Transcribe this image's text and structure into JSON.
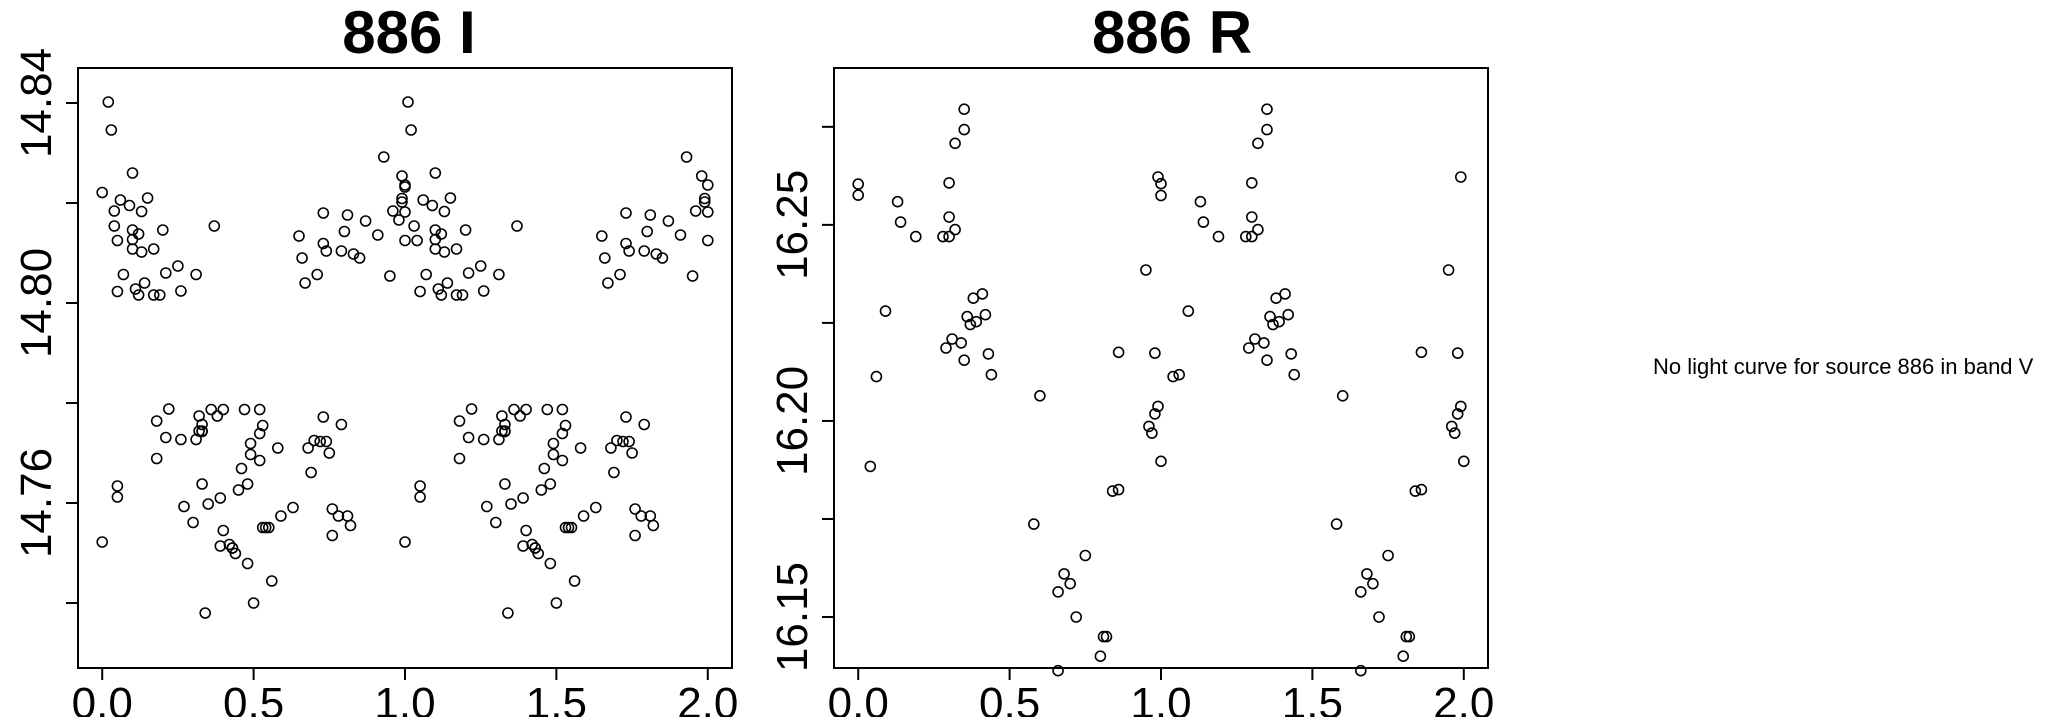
{
  "chart_data": [
    {
      "type": "scatter",
      "title": "886 I",
      "xlabel": "",
      "ylabel": "",
      "xlim": [
        -0.08,
        2.08
      ],
      "ylim": [
        14.847,
        14.727
      ],
      "y_reversed": true,
      "x_ticks": [
        "0.0",
        "0.5",
        "1.0",
        "1.5",
        "2.0"
      ],
      "x_tick_values": [
        0.0,
        0.5,
        1.0,
        1.5,
        2.0
      ],
      "y_ticks": [
        "14.76",
        "14.80",
        "14.84"
      ],
      "y_tick_values": [
        14.74,
        14.76,
        14.78,
        14.8,
        14.82,
        14.84
      ],
      "grid": false,
      "points": [
        [
          0.0,
          14.8221
        ],
        [
          0.0,
          14.7522
        ],
        [
          0.02,
          14.8402
        ],
        [
          0.03,
          14.8346
        ],
        [
          0.04,
          14.8184
        ],
        [
          0.04,
          14.8154
        ],
        [
          0.05,
          14.8125
        ],
        [
          0.05,
          14.8023
        ],
        [
          0.05,
          14.7612
        ],
        [
          0.05,
          14.7634
        ],
        [
          0.06,
          14.8206
        ],
        [
          0.07,
          14.8057
        ],
        [
          0.09,
          14.8195
        ],
        [
          0.1,
          14.8146
        ],
        [
          0.1,
          14.8108
        ],
        [
          0.1,
          14.8127
        ],
        [
          0.1,
          14.826
        ],
        [
          0.11,
          14.8028
        ],
        [
          0.12,
          14.8138
        ],
        [
          0.12,
          14.8016
        ],
        [
          0.13,
          14.8102
        ],
        [
          0.13,
          14.8183
        ],
        [
          0.14,
          14.804
        ],
        [
          0.15,
          14.821
        ],
        [
          0.17,
          14.8108
        ],
        [
          0.17,
          14.8016
        ],
        [
          0.18,
          14.7764
        ],
        [
          0.18,
          14.7689
        ],
        [
          0.19,
          14.8016
        ],
        [
          0.2,
          14.8146
        ],
        [
          0.21,
          14.806
        ],
        [
          0.21,
          14.7731
        ],
        [
          0.22,
          14.7788
        ],
        [
          0.25,
          14.8074
        ],
        [
          0.26,
          14.8024
        ],
        [
          0.26,
          14.7727
        ],
        [
          0.27,
          14.7593
        ],
        [
          0.3,
          14.7561
        ],
        [
          0.31,
          14.8057
        ],
        [
          0.31,
          14.7727
        ],
        [
          0.32,
          14.7774
        ],
        [
          0.32,
          14.7744
        ],
        [
          0.33,
          14.7638
        ],
        [
          0.33,
          14.7757
        ],
        [
          0.33,
          14.7743
        ],
        [
          0.33,
          14.7744
        ],
        [
          0.34,
          14.738
        ],
        [
          0.35,
          14.7598
        ],
        [
          0.36,
          14.7787
        ],
        [
          0.37,
          14.8154
        ],
        [
          0.38,
          14.7774
        ],
        [
          0.39,
          14.761
        ],
        [
          0.39,
          14.7514
        ],
        [
          0.4,
          14.7787
        ],
        [
          0.4,
          14.7545
        ],
        [
          0.42,
          14.7517
        ],
        [
          0.43,
          14.751
        ],
        [
          0.43,
          14.751
        ],
        [
          0.44,
          14.7499
        ],
        [
          0.45,
          14.7626
        ],
        [
          0.46,
          14.7669
        ],
        [
          0.47,
          14.7787
        ],
        [
          0.48,
          14.7638
        ],
        [
          0.48,
          14.7479
        ],
        [
          0.49,
          14.7697
        ],
        [
          0.49,
          14.7719
        ],
        [
          0.5,
          14.74
        ],
        [
          0.52,
          14.7739
        ],
        [
          0.52,
          14.7787
        ],
        [
          0.52,
          14.7685
        ],
        [
          0.53,
          14.7755
        ],
        [
          0.53,
          14.7551
        ],
        [
          0.54,
          14.7551
        ],
        [
          0.55,
          14.7551
        ],
        [
          0.56,
          14.7444
        ],
        [
          0.58,
          14.771
        ],
        [
          0.59,
          14.7574
        ],
        [
          0.63,
          14.7591
        ],
        [
          0.65,
          14.8134
        ],
        [
          0.66,
          14.809
        ],
        [
          0.67,
          14.804
        ],
        [
          0.68,
          14.771
        ],
        [
          0.69,
          14.7661
        ],
        [
          0.7,
          14.7725
        ],
        [
          0.71,
          14.8057
        ],
        [
          0.72,
          14.7723
        ],
        [
          0.73,
          14.818
        ],
        [
          0.73,
          14.7772
        ],
        [
          0.73,
          14.8119
        ],
        [
          0.74,
          14.8104
        ],
        [
          0.74,
          14.7723
        ],
        [
          0.75,
          14.77
        ],
        [
          0.76,
          14.7588
        ],
        [
          0.76,
          14.7535
        ],
        [
          0.78,
          14.7574
        ],
        [
          0.79,
          14.7757
        ],
        [
          0.79,
          14.8104
        ],
        [
          0.8,
          14.8143
        ],
        [
          0.81,
          14.8176
        ],
        [
          0.81,
          14.7574
        ],
        [
          0.82,
          14.7555
        ],
        [
          0.83,
          14.8098
        ],
        [
          0.85,
          14.809
        ],
        [
          0.87,
          14.8164
        ],
        [
          0.91,
          14.8136
        ],
        [
          0.93,
          14.8292
        ],
        [
          0.95,
          14.8054
        ],
        [
          0.96,
          14.8184
        ],
        [
          0.98,
          14.8166
        ],
        [
          0.99,
          14.8254
        ],
        [
          0.99,
          14.8209
        ],
        [
          0.99,
          14.8202
        ],
        [
          1.0,
          14.8236
        ],
        [
          1.0,
          14.8232
        ],
        [
          1.0,
          14.8182
        ],
        [
          1.0,
          14.8125
        ],
        [
          1.0,
          14.7522
        ],
        [
          1.01,
          14.8402
        ],
        [
          1.02,
          14.8346
        ],
        [
          1.03,
          14.8154
        ],
        [
          1.04,
          14.8125
        ],
        [
          1.05,
          14.8023
        ],
        [
          1.05,
          14.7612
        ],
        [
          1.05,
          14.7634
        ],
        [
          1.06,
          14.8206
        ],
        [
          1.07,
          14.8057
        ],
        [
          1.09,
          14.8195
        ],
        [
          1.1,
          14.8146
        ],
        [
          1.1,
          14.8108
        ],
        [
          1.1,
          14.8127
        ],
        [
          1.1,
          14.826
        ],
        [
          1.11,
          14.8028
        ],
        [
          1.12,
          14.8138
        ],
        [
          1.12,
          14.8016
        ],
        [
          1.13,
          14.8102
        ],
        [
          1.13,
          14.8183
        ],
        [
          1.14,
          14.804
        ],
        [
          1.15,
          14.821
        ],
        [
          1.17,
          14.8108
        ],
        [
          1.17,
          14.8016
        ],
        [
          1.18,
          14.7764
        ],
        [
          1.18,
          14.7689
        ],
        [
          1.19,
          14.8016
        ],
        [
          1.2,
          14.8146
        ],
        [
          1.21,
          14.806
        ],
        [
          1.21,
          14.7731
        ],
        [
          1.22,
          14.7788
        ],
        [
          1.25,
          14.8074
        ],
        [
          1.26,
          14.8024
        ],
        [
          1.26,
          14.7727
        ],
        [
          1.27,
          14.7593
        ],
        [
          1.3,
          14.7561
        ],
        [
          1.31,
          14.8057
        ],
        [
          1.31,
          14.7727
        ],
        [
          1.32,
          14.7774
        ],
        [
          1.32,
          14.7744
        ],
        [
          1.33,
          14.7638
        ],
        [
          1.33,
          14.7757
        ],
        [
          1.33,
          14.7743
        ],
        [
          1.33,
          14.7744
        ],
        [
          1.34,
          14.738
        ],
        [
          1.35,
          14.7598
        ],
        [
          1.36,
          14.7787
        ],
        [
          1.37,
          14.8154
        ],
        [
          1.38,
          14.7774
        ],
        [
          1.39,
          14.761
        ],
        [
          1.39,
          14.7514
        ],
        [
          1.4,
          14.7787
        ],
        [
          1.4,
          14.7545
        ],
        [
          1.42,
          14.7517
        ],
        [
          1.43,
          14.751
        ],
        [
          1.43,
          14.751
        ],
        [
          1.44,
          14.7499
        ],
        [
          1.45,
          14.7626
        ],
        [
          1.46,
          14.7669
        ],
        [
          1.47,
          14.7787
        ],
        [
          1.48,
          14.7638
        ],
        [
          1.48,
          14.7479
        ],
        [
          1.49,
          14.7697
        ],
        [
          1.49,
          14.7719
        ],
        [
          1.5,
          14.74
        ],
        [
          1.52,
          14.7739
        ],
        [
          1.52,
          14.7787
        ],
        [
          1.52,
          14.7685
        ],
        [
          1.53,
          14.7755
        ],
        [
          1.53,
          14.7551
        ],
        [
          1.54,
          14.7551
        ],
        [
          1.55,
          14.7551
        ],
        [
          1.56,
          14.7444
        ],
        [
          1.58,
          14.771
        ],
        [
          1.59,
          14.7574
        ],
        [
          1.63,
          14.7591
        ],
        [
          1.65,
          14.8134
        ],
        [
          1.66,
          14.809
        ],
        [
          1.67,
          14.804
        ],
        [
          1.68,
          14.771
        ],
        [
          1.69,
          14.7661
        ],
        [
          1.7,
          14.7725
        ],
        [
          1.71,
          14.8057
        ],
        [
          1.72,
          14.7723
        ],
        [
          1.73,
          14.818
        ],
        [
          1.73,
          14.7772
        ],
        [
          1.73,
          14.8119
        ],
        [
          1.74,
          14.8104
        ],
        [
          1.74,
          14.7723
        ],
        [
          1.75,
          14.77
        ],
        [
          1.76,
          14.7588
        ],
        [
          1.76,
          14.7535
        ],
        [
          1.78,
          14.7574
        ],
        [
          1.79,
          14.7757
        ],
        [
          1.79,
          14.8104
        ],
        [
          1.8,
          14.8143
        ],
        [
          1.81,
          14.8176
        ],
        [
          1.81,
          14.7574
        ],
        [
          1.82,
          14.7555
        ],
        [
          1.83,
          14.8098
        ],
        [
          1.85,
          14.809
        ],
        [
          1.87,
          14.8164
        ],
        [
          1.91,
          14.8136
        ],
        [
          1.93,
          14.8292
        ],
        [
          1.95,
          14.8054
        ],
        [
          1.96,
          14.8184
        ],
        [
          1.98,
          14.8254
        ],
        [
          1.99,
          14.8209
        ],
        [
          1.99,
          14.8202
        ],
        [
          2.0,
          14.8236
        ],
        [
          2.0,
          14.8182
        ],
        [
          2.0,
          14.8125
        ]
      ]
    },
    {
      "type": "scatter",
      "title": "886 R",
      "xlabel": "",
      "ylabel": "",
      "xlim": [
        -0.08,
        2.08
      ],
      "ylim": [
        16.29,
        16.137
      ],
      "y_reversed": true,
      "x_ticks": [
        "0.0",
        "0.5",
        "1.0",
        "1.5",
        "2.0"
      ],
      "x_tick_values": [
        0.0,
        0.5,
        1.0,
        1.5,
        2.0
      ],
      "y_ticks": [
        "16.15",
        "16.20",
        "16.25"
      ],
      "y_tick_values": [
        16.15,
        16.175,
        16.2,
        16.225,
        16.25,
        16.275
      ],
      "grid": false,
      "points": [
        [
          0.0,
          16.2576
        ],
        [
          0.0,
          16.2604
        ],
        [
          0.04,
          16.1884
        ],
        [
          0.06,
          16.2113
        ],
        [
          0.09,
          16.228
        ],
        [
          0.13,
          16.2559
        ],
        [
          0.14,
          16.2507
        ],
        [
          0.19,
          16.247
        ],
        [
          0.28,
          16.247
        ],
        [
          0.29,
          16.2186
        ],
        [
          0.3,
          16.252
        ],
        [
          0.3,
          16.247
        ],
        [
          0.3,
          16.2607
        ],
        [
          0.31,
          16.2209
        ],
        [
          0.32,
          16.2488
        ],
        [
          0.32,
          16.2708
        ],
        [
          0.34,
          16.2199
        ],
        [
          0.35,
          16.2743
        ],
        [
          0.35,
          16.2155
        ],
        [
          0.35,
          16.2795
        ],
        [
          0.36,
          16.2266
        ],
        [
          0.37,
          16.2246
        ],
        [
          0.38,
          16.2313
        ],
        [
          0.39,
          16.2253
        ],
        [
          0.41,
          16.2324
        ],
        [
          0.42,
          16.2271
        ],
        [
          0.43,
          16.2171
        ],
        [
          0.44,
          16.2118
        ],
        [
          0.58,
          16.1737
        ],
        [
          0.6,
          16.2064
        ],
        [
          0.66,
          16.1564
        ],
        [
          0.66,
          16.1363
        ],
        [
          0.68,
          16.161
        ],
        [
          0.7,
          16.1585
        ],
        [
          0.72,
          16.15
        ],
        [
          0.75,
          16.1657
        ],
        [
          0.8,
          16.14
        ],
        [
          0.81,
          16.145
        ],
        [
          0.82,
          16.145
        ],
        [
          0.84,
          16.1821
        ],
        [
          0.86,
          16.1825
        ],
        [
          0.86,
          16.2175
        ],
        [
          0.95,
          16.2385
        ],
        [
          0.96,
          16.1986
        ],
        [
          0.97,
          16.1969
        ],
        [
          0.98,
          16.2173
        ],
        [
          0.98,
          16.2018
        ],
        [
          0.99,
          16.2037
        ],
        [
          0.99,
          16.2622
        ],
        [
          1.0,
          16.2605
        ],
        [
          1.0,
          16.2575
        ],
        [
          1.0,
          16.1897
        ],
        [
          1.04,
          16.2113
        ],
        [
          1.06,
          16.2118
        ],
        [
          1.09,
          16.228
        ],
        [
          1.13,
          16.2559
        ],
        [
          1.14,
          16.2507
        ],
        [
          1.19,
          16.247
        ],
        [
          1.28,
          16.247
        ],
        [
          1.29,
          16.2186
        ],
        [
          1.3,
          16.252
        ],
        [
          1.3,
          16.247
        ],
        [
          1.3,
          16.2607
        ],
        [
          1.31,
          16.2209
        ],
        [
          1.32,
          16.2488
        ],
        [
          1.32,
          16.2708
        ],
        [
          1.34,
          16.2199
        ],
        [
          1.35,
          16.2743
        ],
        [
          1.35,
          16.2155
        ],
        [
          1.35,
          16.2795
        ],
        [
          1.36,
          16.2266
        ],
        [
          1.37,
          16.2246
        ],
        [
          1.38,
          16.2313
        ],
        [
          1.39,
          16.2253
        ],
        [
          1.41,
          16.2324
        ],
        [
          1.42,
          16.2271
        ],
        [
          1.43,
          16.2171
        ],
        [
          1.44,
          16.2118
        ],
        [
          1.58,
          16.1737
        ],
        [
          1.6,
          16.2064
        ],
        [
          1.66,
          16.1564
        ],
        [
          1.66,
          16.1363
        ],
        [
          1.68,
          16.161
        ],
        [
          1.7,
          16.1585
        ],
        [
          1.72,
          16.15
        ],
        [
          1.75,
          16.1657
        ],
        [
          1.8,
          16.14
        ],
        [
          1.81,
          16.145
        ],
        [
          1.82,
          16.145
        ],
        [
          1.84,
          16.1821
        ],
        [
          1.86,
          16.1825
        ],
        [
          1.86,
          16.2175
        ],
        [
          1.95,
          16.2385
        ],
        [
          1.96,
          16.1986
        ],
        [
          1.97,
          16.1969
        ],
        [
          1.98,
          16.2173
        ],
        [
          1.98,
          16.2018
        ],
        [
          1.99,
          16.2037
        ],
        [
          1.99,
          16.2622
        ],
        [
          2.0,
          16.1897
        ]
      ]
    }
  ],
  "message": {
    "text": "No light curve for source 886 in band V"
  }
}
